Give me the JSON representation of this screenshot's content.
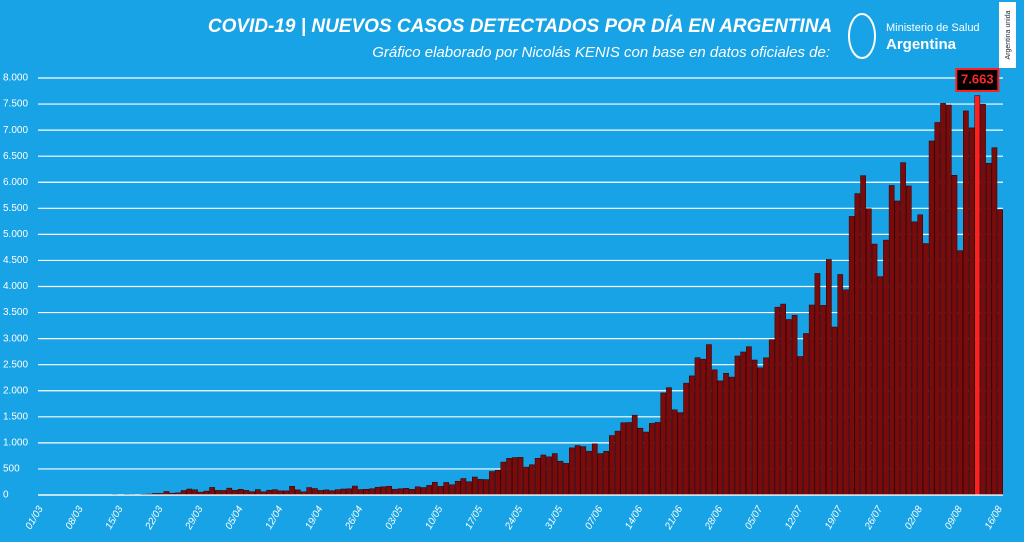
{
  "chart_data": {
    "type": "bar",
    "title": "COVID-19  |  NUEVOS CASOS DETECTADOS POR DÍA EN ARGENTINA",
    "subtitle": "Gráfico elaborado por Nicolás KENIS con base en datos oficiales de:",
    "logo": {
      "line1": "Ministerio de Salud",
      "line2": "Argentina",
      "tag": "Argentina unida"
    },
    "color": "#7b0b0b",
    "highlight_color": "#ff1f1f",
    "grid": true,
    "ylim": [
      0,
      8000
    ],
    "yticks": [
      0,
      500,
      {
        "value": 1000,
        "label": "1.000"
      },
      {
        "value": 1500,
        "label": "1.500"
      },
      {
        "value": 2000,
        "label": "2.000"
      },
      {
        "value": 2500,
        "label": "2.500"
      },
      {
        "value": 3000,
        "label": "3.000"
      },
      {
        "value": 3500,
        "label": "3.500"
      },
      {
        "value": 4000,
        "label": "4.000"
      },
      {
        "value": 4500,
        "label": "4.500"
      },
      {
        "value": 5000,
        "label": "5.000"
      },
      {
        "value": 5500,
        "label": "5.500"
      },
      {
        "value": 6000,
        "label": "6.000"
      },
      {
        "value": 6500,
        "label": "6.500"
      },
      {
        "value": 7000,
        "label": "7.000"
      },
      {
        "value": 7500,
        "label": "7.500"
      },
      {
        "value": 8000,
        "label": "8.000"
      }
    ],
    "categories": [
      "01/03",
      null,
      null,
      null,
      null,
      null,
      null,
      "08/03",
      null,
      null,
      null,
      null,
      null,
      null,
      "15/03",
      null,
      null,
      null,
      null,
      null,
      null,
      "22/03",
      null,
      null,
      null,
      null,
      null,
      null,
      "29/03",
      null,
      null,
      null,
      null,
      null,
      null,
      "05/04",
      null,
      null,
      null,
      null,
      null,
      null,
      "12/04",
      null,
      null,
      null,
      null,
      null,
      null,
      "19/04",
      null,
      null,
      null,
      null,
      null,
      null,
      "26/04",
      null,
      null,
      null,
      null,
      null,
      null,
      "03/05",
      null,
      null,
      null,
      null,
      null,
      null,
      "10/05",
      null,
      null,
      null,
      null,
      null,
      null,
      "17/05",
      null,
      null,
      null,
      null,
      null,
      null,
      "24/05",
      null,
      null,
      null,
      null,
      null,
      null,
      "31/05",
      null,
      null,
      null,
      null,
      null,
      null,
      "07/06",
      null,
      null,
      null,
      null,
      null,
      null,
      "14/06",
      null,
      null,
      null,
      null,
      null,
      null,
      "21/06",
      null,
      null,
      null,
      null,
      null,
      null,
      "28/06",
      null,
      null,
      null,
      null,
      null,
      null,
      "05/07",
      null,
      null,
      null,
      null,
      null,
      null,
      "12/07",
      null,
      null,
      null,
      null,
      null,
      null,
      "19/07",
      null,
      null,
      null,
      null,
      null,
      null,
      "26/07",
      null,
      null,
      null,
      null,
      null,
      null,
      "02/08",
      null,
      null,
      null,
      null,
      null,
      null,
      "09/08",
      null,
      null,
      null,
      null,
      null,
      null,
      "16/08"
    ],
    "values": [
      0,
      1,
      0,
      1,
      0,
      0,
      2,
      0,
      3,
      5,
      2,
      5,
      2,
      10,
      3,
      11,
      9,
      6,
      14,
      18,
      30,
      30,
      67,
      35,
      41,
      86,
      115,
      101,
      55,
      75,
      146,
      88,
      87,
      132,
      92,
      110,
      88,
      64,
      104,
      61,
      92,
      102,
      79,
      79,
      167,
      98,
      60,
      143,
      124,
      87,
      98,
      83,
      102,
      115,
      119,
      172,
      105,
      111,
      121,
      150,
      158,
      168,
      111,
      120,
      129,
      109,
      157,
      143,
      184,
      245,
      165,
      240,
      197,
      264,
      316,
      255,
      345,
      300,
      296,
      450,
      474,
      632,
      703,
      718,
      723,
      535,
      581,
      705,
      768,
      732,
      795,
      648,
      607,
      904,
      949,
      929,
      840,
      983,
      795,
      839,
      1141,
      1226,
      1386,
      1391,
      1531,
      1282,
      1208,
      1374,
      1393,
      1958,
      2060,
      1634,
      1581,
      2146,
      2285,
      2635,
      2606,
      2886,
      2401,
      2189,
      2335,
      2262,
      2667,
      2744,
      2845,
      2590,
      2439,
      2632,
      2979,
      3604,
      3663,
      3367,
      3449,
      2657,
      3099,
      3645,
      4250,
      3638,
      4518,
      3223,
      4231,
      3937,
      5344,
      5782,
      6127,
      5493,
      4814,
      4190,
      4890,
      5939,
      5641,
      6377,
      5929,
      5241,
      5376,
      4824,
      6792,
      7147,
      7513,
      7482,
      6134,
      4688,
      7369,
      7043,
      7663,
      7498,
      6365,
      6663,
      5474
    ],
    "value_labels": [
      null,
      null,
      null,
      null,
      null,
      null,
      null,
      null,
      null,
      null,
      null,
      null,
      null,
      null,
      null,
      null,
      null,
      null,
      null,
      null,
      null,
      null,
      null,
      null,
      null,
      null,
      null,
      null,
      null,
      null,
      null,
      null,
      null,
      null,
      null,
      null,
      null,
      null,
      null,
      null,
      null,
      null,
      null,
      null,
      null,
      null,
      null,
      null,
      null,
      null,
      null,
      null,
      null,
      null,
      null,
      null,
      null,
      null,
      null,
      null,
      null,
      null,
      null,
      null,
      null,
      null,
      null,
      null,
      null,
      null,
      null,
      null,
      null,
      null,
      null,
      null,
      null,
      null,
      null,
      null,
      null,
      null,
      null,
      null,
      null,
      null,
      null,
      null,
      null,
      null,
      null,
      null,
      null,
      null,
      null,
      null,
      null,
      null,
      null,
      null,
      null,
      null,
      null,
      null,
      null,
      null,
      null,
      null,
      null,
      null,
      null,
      null,
      null,
      null,
      null,
      null,
      null,
      null,
      null,
      null,
      null,
      null,
      null,
      null,
      null,
      null,
      null,
      null,
      null,
      null,
      null,
      null,
      null,
      null,
      null,
      null,
      null,
      null,
      null,
      null,
      null,
      null,
      null,
      null,
      null,
      null,
      null,
      null,
      null,
      null,
      null,
      null,
      null,
      null,
      null,
      null,
      null,
      null,
      null,
      null,
      null,
      null,
      null,
      null,
      "7.663",
      null,
      null,
      null,
      null
    ]
  }
}
